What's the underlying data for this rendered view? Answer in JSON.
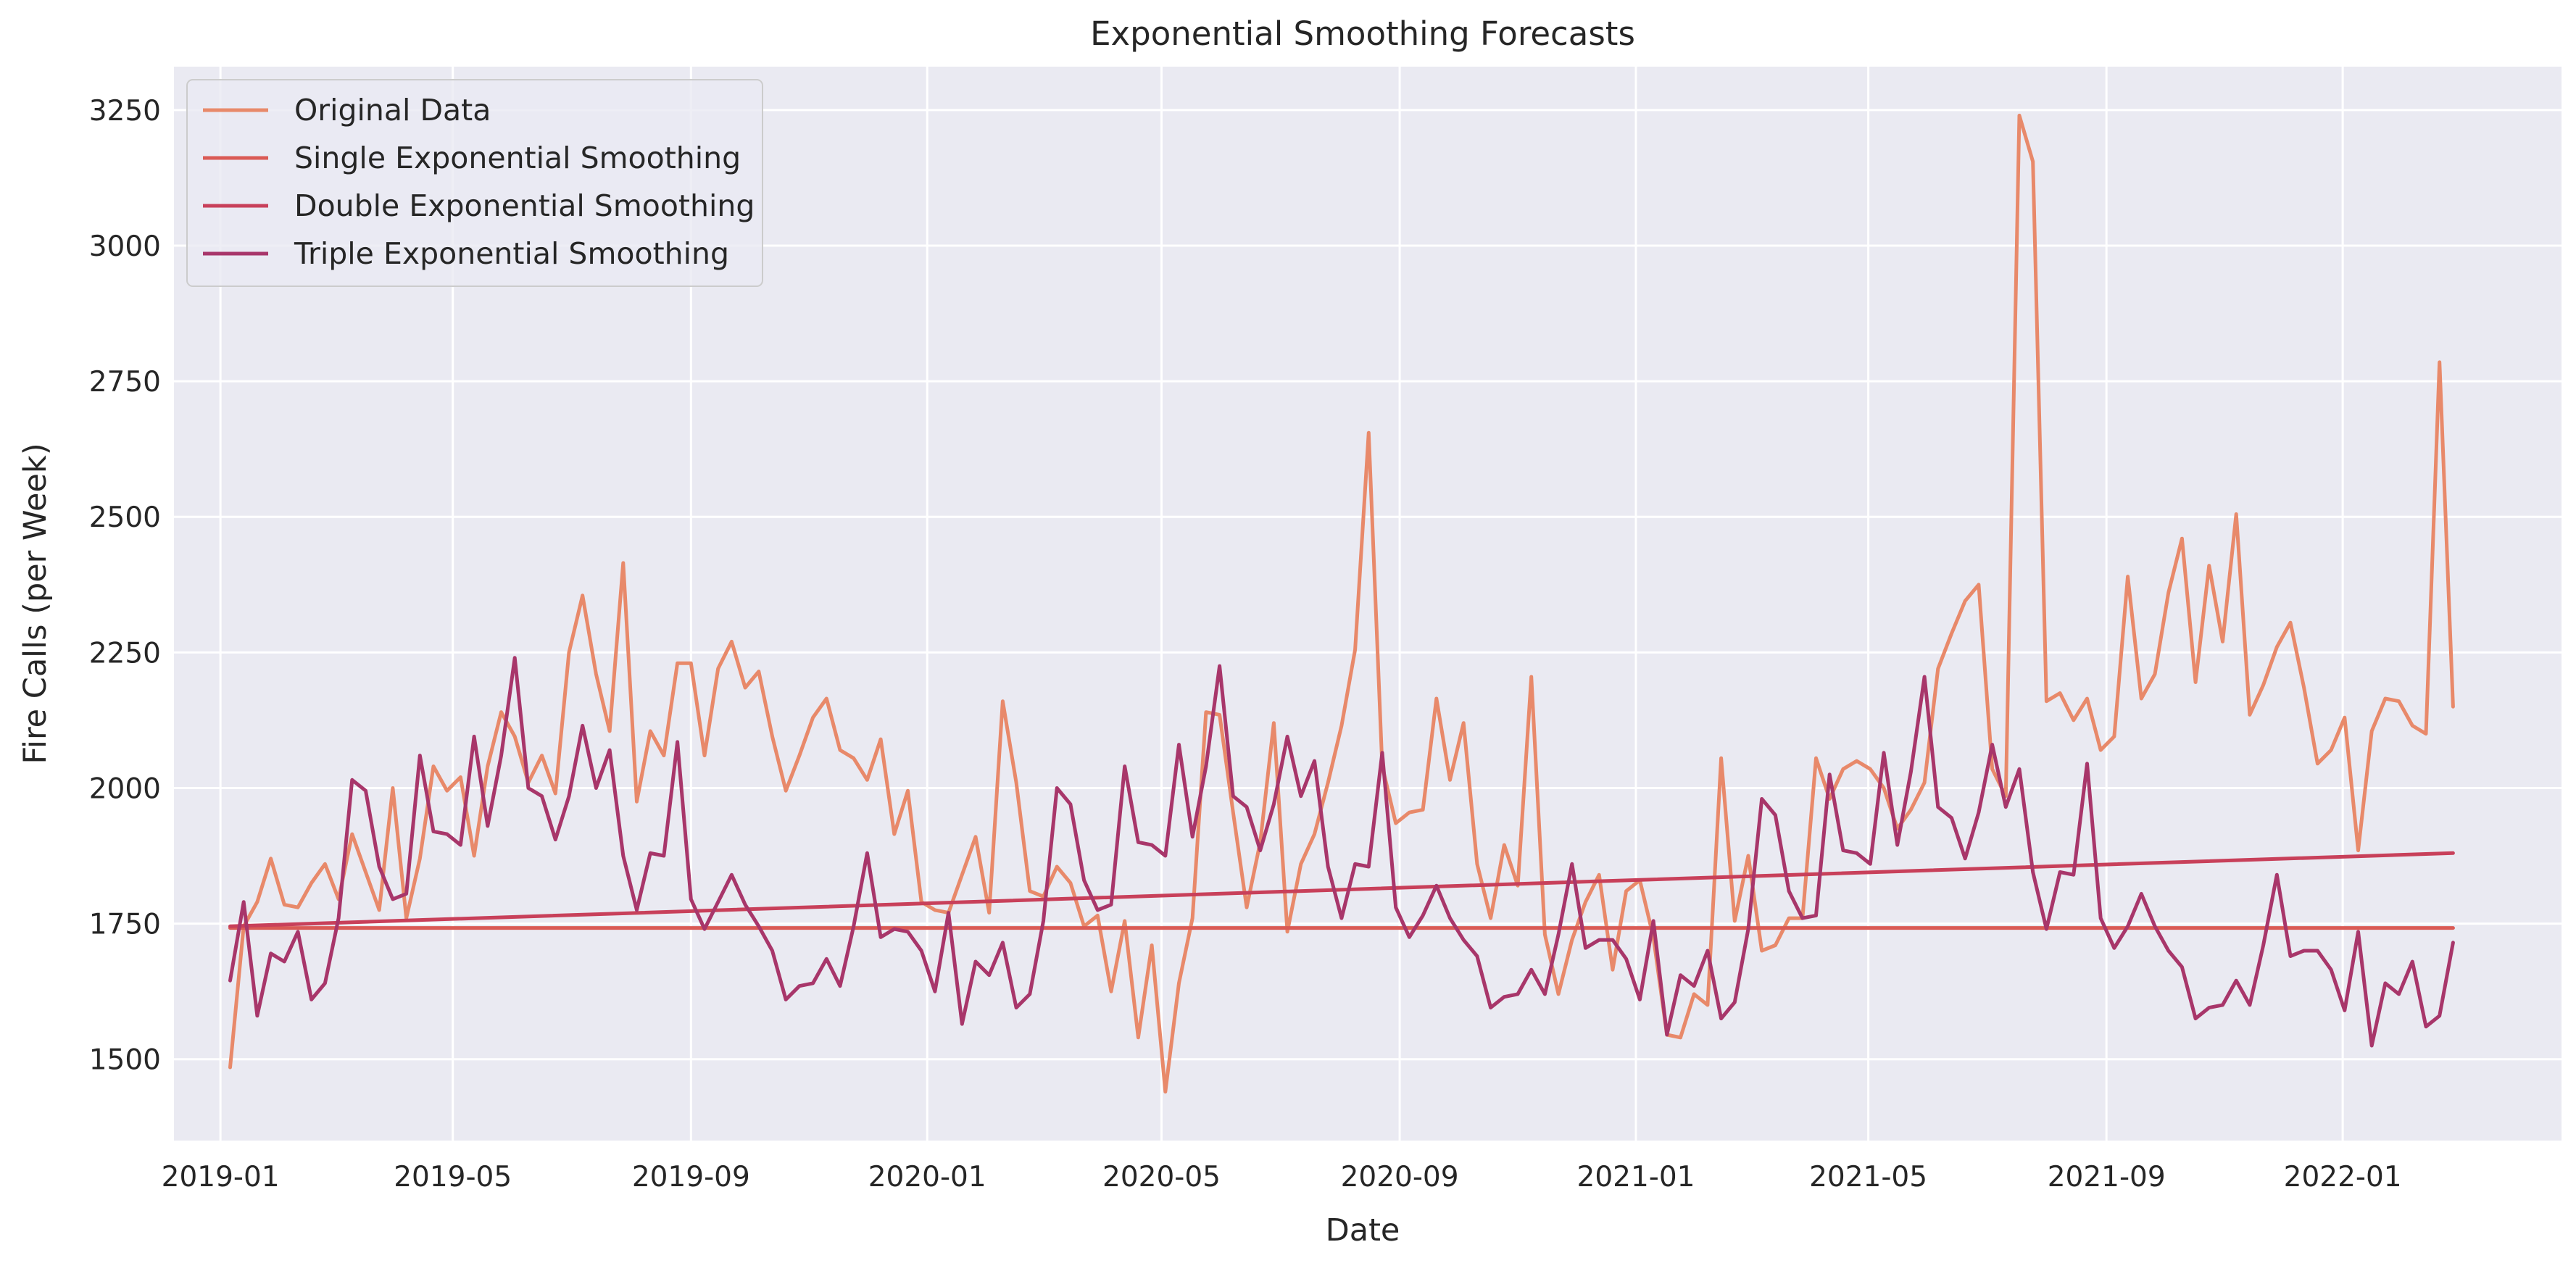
{
  "chart_data": {
    "type": "line",
    "title": "Exponential Smoothing Forecasts",
    "xlabel": "Date",
    "ylabel": "Fire Calls (per Week)",
    "x_axis": "date",
    "x_start": "2019-01-06",
    "x_step_days": 7,
    "xlim": [
      "2018-12-08",
      "2022-04-24"
    ],
    "ylim": [
      1350,
      3330
    ],
    "yticks": [
      1500,
      1750,
      2000,
      2250,
      2500,
      2750,
      3000,
      3250
    ],
    "xticks": [
      "2019-01",
      "2019-05",
      "2019-09",
      "2020-01",
      "2020-05",
      "2020-09",
      "2021-01",
      "2021-05",
      "2021-09",
      "2022-01"
    ],
    "grid": true,
    "legend_position": "top-left",
    "series": [
      {
        "name": "Original Data",
        "color": "#e8896a",
        "values": [
          1485,
          1745,
          1790,
          1870,
          1785,
          1780,
          1825,
          1860,
          1795,
          1915,
          1845,
          1775,
          2000,
          1760,
          1870,
          2040,
          1995,
          2020,
          1875,
          2040,
          2140,
          2095,
          2010,
          2060,
          1990,
          2250,
          2355,
          2210,
          2105,
          2415,
          1975,
          2105,
          2060,
          2230,
          2230,
          2060,
          2220,
          2270,
          2185,
          2215,
          2095,
          1995,
          2060,
          2130,
          2165,
          2070,
          2055,
          2015,
          2090,
          1915,
          1995,
          1790,
          1775,
          1770,
          1840,
          1910,
          1770,
          2160,
          2010,
          1810,
          1800,
          1855,
          1825,
          1745,
          1765,
          1625,
          1755,
          1540,
          1710,
          1440,
          1640,
          1760,
          2140,
          2135,
          1955,
          1780,
          1900,
          2120,
          1735,
          1860,
          1915,
          2010,
          2115,
          2255,
          2655,
          2040,
          1935,
          1955,
          1960,
          2165,
          2015,
          2120,
          1860,
          1760,
          1895,
          1820,
          2205,
          1730,
          1620,
          1720,
          1790,
          1840,
          1665,
          1810,
          1830,
          1725,
          1545,
          1540,
          1620,
          1600,
          2055,
          1755,
          1875,
          1700,
          1710,
          1760,
          1760,
          2055,
          1980,
          2035,
          2050,
          2035,
          2000,
          1925,
          1960,
          2010,
          2220,
          2285,
          2345,
          2375,
          2035,
          1985,
          3240,
          3155,
          2160,
          2175,
          2125,
          2165,
          2070,
          2095,
          2390,
          2165,
          2210,
          2360,
          2460,
          2195,
          2410,
          2270,
          2505,
          2135,
          2190,
          2260,
          2305,
          2185,
          2045,
          2070,
          2130,
          1885,
          2105,
          2165,
          2160,
          2115,
          2100,
          2785,
          2150
        ]
      },
      {
        "name": "Single Exponential Smoothing",
        "color": "#da5a55",
        "values": [
          1742,
          1742
        ]
      },
      {
        "name": "Double Exponential Smoothing",
        "color": "#c8405a",
        "values": [
          1745,
          1880
        ]
      },
      {
        "name": "Triple Exponential Smoothing",
        "color": "#a8366a",
        "values": [
          1645,
          1790,
          1580,
          1695,
          1680,
          1735,
          1610,
          1640,
          1760,
          2015,
          1995,
          1855,
          1795,
          1805,
          2060,
          1920,
          1915,
          1895,
          2095,
          1930,
          2060,
          2240,
          2000,
          1985,
          1905,
          1985,
          2115,
          2000,
          2070,
          1875,
          1775,
          1880,
          1875,
          2085,
          1795,
          1740,
          1790,
          1840,
          1785,
          1745,
          1700,
          1610,
          1635,
          1640,
          1685,
          1635,
          1745,
          1880,
          1725,
          1740,
          1735,
          1700,
          1625,
          1770,
          1565,
          1680,
          1655,
          1715,
          1595,
          1620,
          1755,
          2000,
          1970,
          1830,
          1775,
          1785,
          2040,
          1900,
          1895,
          1875,
          2080,
          1910,
          2040,
          2225,
          1985,
          1965,
          1885,
          1970,
          2095,
          1985,
          2050,
          1855,
          1760,
          1860,
          1855,
          2065,
          1780,
          1725,
          1765,
          1820,
          1760,
          1720,
          1690,
          1595,
          1615,
          1620,
          1665,
          1620,
          1730,
          1860,
          1705,
          1720,
          1720,
          1685,
          1610,
          1755,
          1545,
          1655,
          1635,
          1700,
          1575,
          1605,
          1740,
          1980,
          1950,
          1810,
          1760,
          1765,
          2025,
          1885,
          1880,
          1860,
          2065,
          1895,
          2030,
          2205,
          1965,
          1945,
          1870,
          1955,
          2080,
          1965,
          2035,
          1845,
          1740,
          1845,
          1840,
          2045,
          1760,
          1705,
          1745,
          1805,
          1745,
          1700,
          1670,
          1575,
          1595,
          1600,
          1645,
          1600,
          1710,
          1840,
          1690,
          1700,
          1700,
          1665,
          1590,
          1735,
          1525,
          1640,
          1620,
          1680,
          1560,
          1580,
          1715
        ]
      }
    ]
  }
}
